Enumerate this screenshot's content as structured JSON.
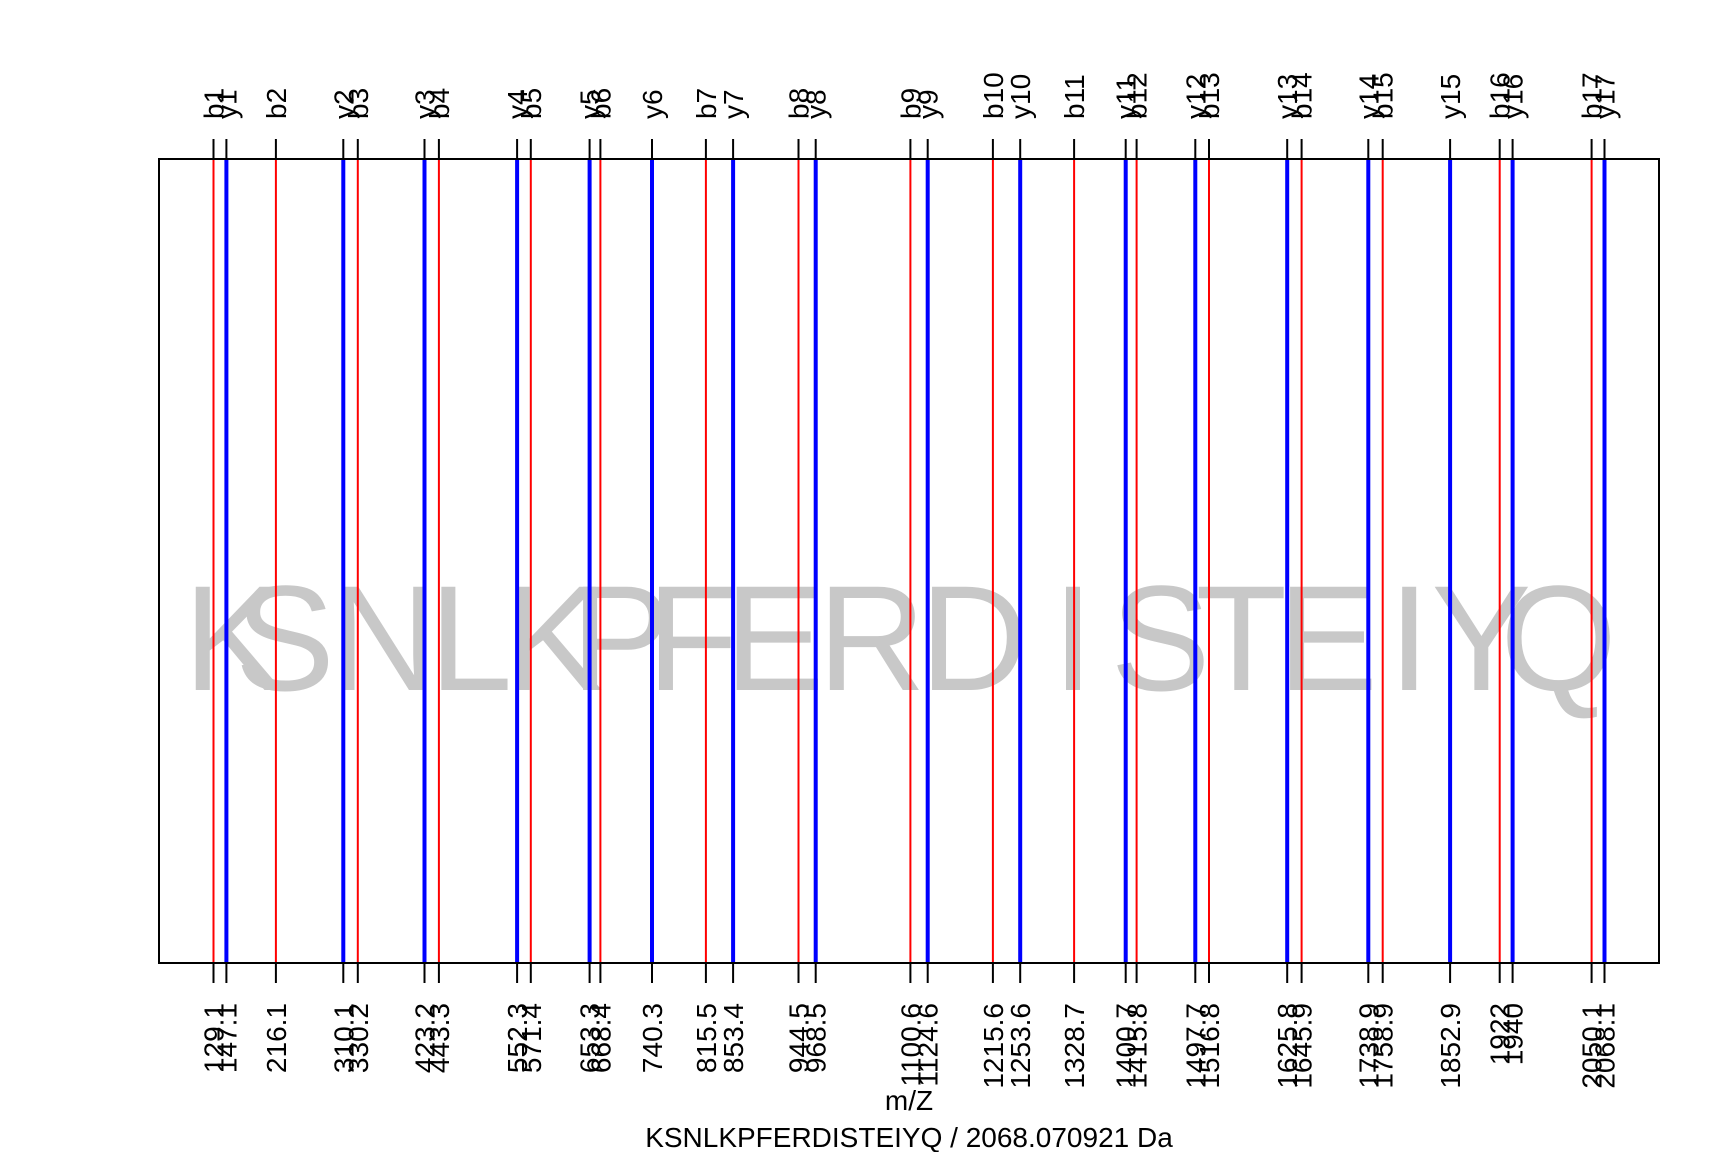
{
  "chart_data": {
    "type": "fragment-ion-spectrum",
    "xlabel": "m/Z",
    "caption": "KSNLKPFERDISTEIYQ / 2068.070921 Da",
    "xlim": [
      129.1,
      2068.1
    ],
    "background_sequence": [
      "K",
      "S",
      "N",
      "L",
      "K",
      "P",
      "F",
      "E",
      "R",
      "D",
      "I",
      "S",
      "T",
      "E",
      "I",
      "Y",
      "Q"
    ],
    "colors": {
      "b_ions": "#ff0000",
      "y_ions": "#0000ff",
      "frame": "#000000",
      "sequence": "#c8c8c8"
    },
    "series": [
      {
        "name": "b",
        "labels": [
          "b1",
          "b2",
          "b3",
          "b4",
          "b5",
          "b6",
          "b7",
          "b8",
          "b9",
          "b10",
          "b11",
          "b12",
          "b13",
          "b14",
          "b15",
          "b16",
          "b17"
        ],
        "mz": [
          129.1,
          216.1,
          330.2,
          443.3,
          571.4,
          668.4,
          815.5,
          944.5,
          1100.6,
          1215.6,
          1328.7,
          1415.8,
          1516.8,
          1645.9,
          1758.9,
          1922,
          2050.1
        ],
        "mz_labels": [
          "129.1",
          "216.1",
          "330.2",
          "443.3",
          "571.4",
          "668.4",
          "815.5",
          "944.5",
          "1100.6",
          "1215.6",
          "1328.7",
          "1415.8",
          "1516.8",
          "1645.9",
          "1758.9",
          "1922",
          "2050.1"
        ]
      },
      {
        "name": "y",
        "labels": [
          "y1",
          "y2",
          "y3",
          "y4",
          "y5",
          "y6",
          "y7",
          "y8",
          "y9",
          "y10",
          "y11",
          "y12",
          "y13",
          "y14",
          "y15",
          "y16",
          "y17"
        ],
        "mz": [
          147.1,
          310.1,
          423.2,
          552.3,
          653.3,
          740.3,
          853.4,
          968.5,
          1124.6,
          1253.6,
          1400.7,
          1497.7,
          1625.8,
          1738.9,
          1852.9,
          1940,
          2068.1
        ],
        "mz_labels": [
          "147.1",
          "310.1",
          "423.2",
          "552.3",
          "653.3",
          "740.3",
          "853.4",
          "968.5",
          "1124.6",
          "1253.6",
          "1400.7",
          "1497.7",
          "1625.8",
          "1738.9",
          "1852.9",
          "1940",
          "2068.1"
        ]
      }
    ]
  }
}
